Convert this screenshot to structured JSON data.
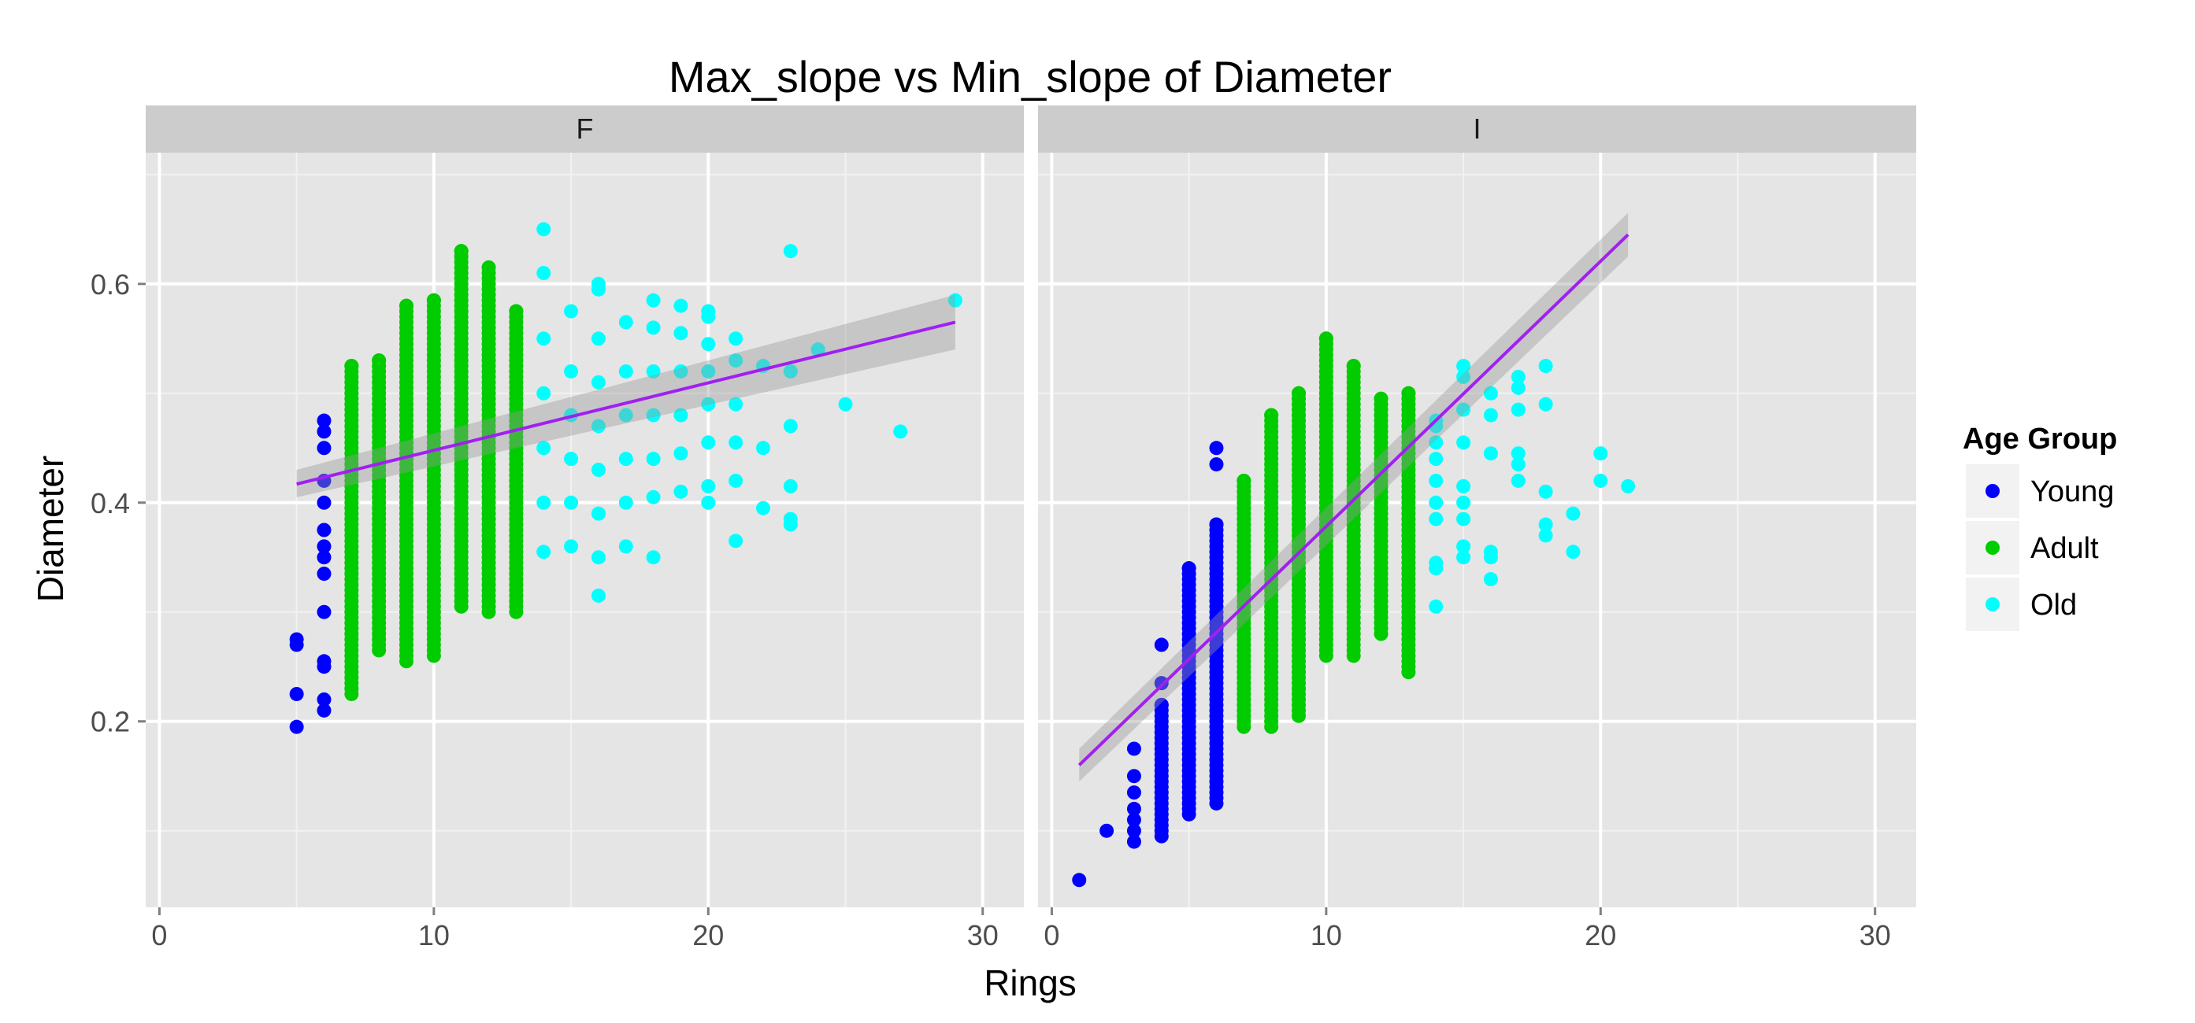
{
  "chart_data": {
    "type": "scatter",
    "title": "Max_slope vs Min_slope of Diameter",
    "xlabel": "Rings",
    "ylabel": "Diameter",
    "xlim": [
      -0.5,
      31.5
    ],
    "ylim": [
      0.03,
      0.72
    ],
    "x_ticks": [
      0,
      10,
      20,
      30
    ],
    "y_ticks": [
      0.2,
      0.4,
      0.6
    ],
    "grid": true,
    "facets": [
      "F",
      "I"
    ],
    "legend": {
      "title": "Age Group",
      "position": "right",
      "items": [
        {
          "name": "Young",
          "color": "#0000FF"
        },
        {
          "name": "Adult",
          "color": "#00CC00"
        },
        {
          "name": "Old",
          "color": "#00FFFF"
        }
      ]
    },
    "colors": {
      "Young": "#0000FF",
      "Adult": "#00CC00",
      "Old": "#00FFFF",
      "fit_line": "#A020F0",
      "ribbon": "#999999"
    },
    "panels": [
      {
        "facet": "F",
        "fit": {
          "x": [
            5,
            29
          ],
          "y": [
            0.417,
            0.565
          ],
          "se_lo": [
            0.405,
            0.54
          ],
          "se_hi": [
            0.43,
            0.59
          ]
        },
        "series": [
          {
            "name": "Young",
            "points": [
              [
                5,
                0.195
              ],
              [
                5,
                0.225
              ],
              [
                5,
                0.27
              ],
              [
                5,
                0.275
              ],
              [
                6,
                0.21
              ],
              [
                6,
                0.22
              ],
              [
                6,
                0.25
              ],
              [
                6,
                0.255
              ],
              [
                6,
                0.3
              ],
              [
                6,
                0.335
              ],
              [
                6,
                0.35
              ],
              [
                6,
                0.36
              ],
              [
                6,
                0.375
              ],
              [
                6,
                0.4
              ],
              [
                6,
                0.42
              ],
              [
                6,
                0.45
              ],
              [
                6,
                0.465
              ],
              [
                6,
                0.475
              ]
            ]
          },
          {
            "name": "Adult",
            "range": [
              [
                7,
                0.225,
                0.525
              ],
              [
                8,
                0.265,
                0.53
              ],
              [
                9,
                0.255,
                0.58
              ],
              [
                10,
                0.26,
                0.585
              ],
              [
                11,
                0.305,
                0.63
              ],
              [
                12,
                0.3,
                0.615
              ],
              [
                13,
                0.3,
                0.575
              ]
            ]
          },
          {
            "name": "Old",
            "points": [
              [
                14,
                0.355
              ],
              [
                14,
                0.4
              ],
              [
                14,
                0.45
              ],
              [
                14,
                0.5
              ],
              [
                14,
                0.55
              ],
              [
                14,
                0.61
              ],
              [
                14,
                0.65
              ],
              [
                15,
                0.36
              ],
              [
                15,
                0.4
              ],
              [
                15,
                0.44
              ],
              [
                15,
                0.48
              ],
              [
                15,
                0.52
              ],
              [
                15,
                0.575
              ],
              [
                16,
                0.315
              ],
              [
                16,
                0.35
              ],
              [
                16,
                0.39
              ],
              [
                16,
                0.43
              ],
              [
                16,
                0.47
              ],
              [
                16,
                0.51
              ],
              [
                16,
                0.55
              ],
              [
                16,
                0.595
              ],
              [
                16,
                0.6
              ],
              [
                17,
                0.36
              ],
              [
                17,
                0.4
              ],
              [
                17,
                0.44
              ],
              [
                17,
                0.48
              ],
              [
                17,
                0.52
              ],
              [
                17,
                0.565
              ],
              [
                18,
                0.35
              ],
              [
                18,
                0.405
              ],
              [
                18,
                0.44
              ],
              [
                18,
                0.48
              ],
              [
                18,
                0.52
              ],
              [
                18,
                0.56
              ],
              [
                18,
                0.585
              ],
              [
                19,
                0.41
              ],
              [
                19,
                0.445
              ],
              [
                19,
                0.48
              ],
              [
                19,
                0.52
              ],
              [
                19,
                0.555
              ],
              [
                19,
                0.58
              ],
              [
                20,
                0.4
              ],
              [
                20,
                0.415
              ],
              [
                20,
                0.455
              ],
              [
                20,
                0.49
              ],
              [
                20,
                0.52
              ],
              [
                20,
                0.545
              ],
              [
                20,
                0.57
              ],
              [
                20,
                0.575
              ],
              [
                21,
                0.365
              ],
              [
                21,
                0.42
              ],
              [
                21,
                0.455
              ],
              [
                21,
                0.49
              ],
              [
                21,
                0.53
              ],
              [
                21,
                0.55
              ],
              [
                22,
                0.395
              ],
              [
                22,
                0.45
              ],
              [
                22,
                0.525
              ],
              [
                23,
                0.38
              ],
              [
                23,
                0.385
              ],
              [
                23,
                0.415
              ],
              [
                23,
                0.47
              ],
              [
                23,
                0.52
              ],
              [
                23,
                0.63
              ],
              [
                24,
                0.54
              ],
              [
                25,
                0.49
              ],
              [
                27,
                0.465
              ],
              [
                29,
                0.585
              ]
            ]
          }
        ]
      },
      {
        "facet": "I",
        "fit": {
          "x": [
            1,
            21
          ],
          "y": [
            0.16,
            0.645
          ],
          "se_lo": [
            0.145,
            0.625
          ],
          "se_hi": [
            0.175,
            0.665
          ]
        },
        "series": [
          {
            "name": "Young",
            "points": [
              [
                1,
                0.055
              ],
              [
                2,
                0.1
              ],
              [
                3,
                0.09
              ],
              [
                3,
                0.1
              ],
              [
                3,
                0.11
              ],
              [
                3,
                0.12
              ],
              [
                3,
                0.135
              ],
              [
                3,
                0.15
              ],
              [
                3,
                0.175
              ],
              [
                4,
                0.095
              ],
              [
                4,
                0.27
              ],
              [
                4,
                0.235
              ]
            ],
            "range": [
              [
                4,
                0.1,
                0.215
              ],
              [
                5,
                0.115,
                0.34
              ],
              [
                6,
                0.125,
                0.38
              ]
            ],
            "extra": [
              [
                6,
                0.435
              ],
              [
                6,
                0.45
              ]
            ]
          },
          {
            "name": "Adult",
            "range": [
              [
                7,
                0.195,
                0.42
              ],
              [
                8,
                0.195,
                0.48
              ],
              [
                9,
                0.205,
                0.5
              ],
              [
                10,
                0.26,
                0.55
              ],
              [
                11,
                0.26,
                0.525
              ],
              [
                12,
                0.28,
                0.495
              ],
              [
                13,
                0.245,
                0.5
              ]
            ]
          },
          {
            "name": "Old",
            "points": [
              [
                14,
                0.305
              ],
              [
                14,
                0.34
              ],
              [
                14,
                0.345
              ],
              [
                14,
                0.385
              ],
              [
                14,
                0.4
              ],
              [
                14,
                0.42
              ],
              [
                14,
                0.44
              ],
              [
                14,
                0.455
              ],
              [
                14,
                0.47
              ],
              [
                14,
                0.475
              ],
              [
                15,
                0.35
              ],
              [
                15,
                0.36
              ],
              [
                15,
                0.385
              ],
              [
                15,
                0.4
              ],
              [
                15,
                0.415
              ],
              [
                15,
                0.455
              ],
              [
                15,
                0.485
              ],
              [
                15,
                0.515
              ],
              [
                15,
                0.525
              ],
              [
                16,
                0.33
              ],
              [
                16,
                0.35
              ],
              [
                16,
                0.355
              ],
              [
                16,
                0.445
              ],
              [
                16,
                0.48
              ],
              [
                16,
                0.5
              ],
              [
                17,
                0.42
              ],
              [
                17,
                0.435
              ],
              [
                17,
                0.445
              ],
              [
                17,
                0.485
              ],
              [
                17,
                0.505
              ],
              [
                17,
                0.515
              ],
              [
                18,
                0.37
              ],
              [
                18,
                0.38
              ],
              [
                18,
                0.41
              ],
              [
                18,
                0.49
              ],
              [
                18,
                0.525
              ],
              [
                19,
                0.355
              ],
              [
                19,
                0.39
              ],
              [
                20,
                0.42
              ],
              [
                20,
                0.445
              ],
              [
                21,
                0.415
              ]
            ]
          }
        ]
      }
    ]
  }
}
